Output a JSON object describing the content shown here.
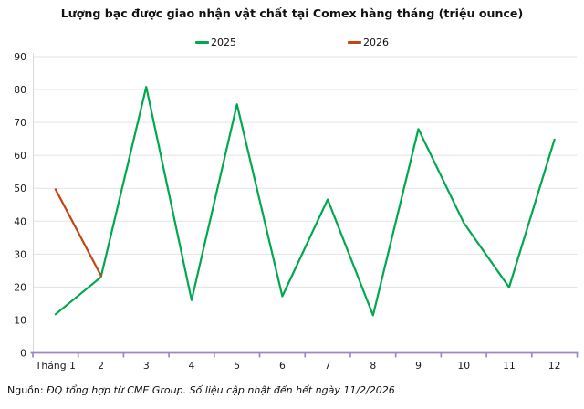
{
  "title": "Lượng bạc được giao nhận vật chất tại Comex hàng tháng (triệu ounce)",
  "legend": [
    {
      "label": "2025",
      "color": "#00a84e"
    },
    {
      "label": "2026",
      "color": "#c74313"
    }
  ],
  "chart_data": {
    "type": "line",
    "title": "Lượng bạc được giao nhận vật chất tại Comex hàng tháng (triệu ounce)",
    "xlabel": "",
    "ylabel": "",
    "categories": [
      "Tháng 1",
      "2",
      "3",
      "4",
      "5",
      "6",
      "7",
      "8",
      "9",
      "10",
      "11",
      "12"
    ],
    "series": [
      {
        "name": "2025",
        "color": "#00a84e",
        "values": [
          11.7,
          23,
          80.8,
          16,
          75.5,
          17.2,
          46.6,
          11.4,
          68,
          39.5,
          19.9,
          64.8
        ]
      },
      {
        "name": "2026",
        "color": "#c74313",
        "values": [
          49.7,
          23.5,
          null,
          null,
          null,
          null,
          null,
          null,
          null,
          null,
          null,
          null
        ]
      }
    ],
    "ylim": [
      0,
      90
    ],
    "yticks": [
      0,
      10,
      20,
      30,
      40,
      50,
      60,
      70,
      80,
      90
    ],
    "grid": "horizontal",
    "legend_position": "top-center",
    "theme": {
      "grid_color": "#e3e3e3",
      "yaxis_color": "#d9d9d9",
      "xaxis_color": "#a286c4",
      "tick_text_color": "#1a1a1a"
    }
  },
  "footer": {
    "prefix": "Nguồn: ",
    "text": "ĐQ tổng hợp từ CME Group. Số liệu cập nhật đến hết ngày 11/2/2026"
  }
}
